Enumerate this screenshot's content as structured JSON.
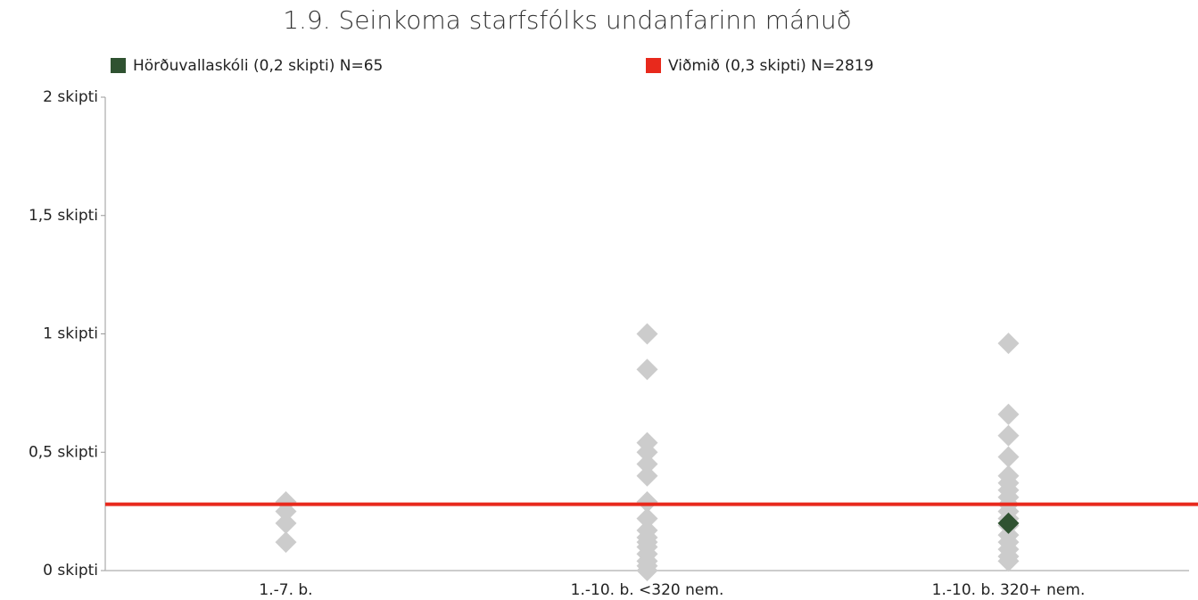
{
  "chart_data": {
    "type": "strip",
    "title": "1.9. Seinkoma starfsfólks undanfarinn mánuð",
    "categories": [
      "1.-7. b.",
      "1.-10. b. <320 nem.",
      "1.-10. b. 320+ nem."
    ],
    "groups": [
      [
        0.29,
        0.25,
        0.2,
        0.12
      ],
      [
        1.0,
        0.85,
        0.54,
        0.5,
        0.45,
        0.4,
        0.29,
        0.22,
        0.17,
        0.14,
        0.12,
        0.1,
        0.07,
        0.04,
        0.02,
        0
      ],
      [
        0.96,
        0.66,
        0.57,
        0.48,
        0.4,
        0.37,
        0.34,
        0.31,
        0.28,
        0.25,
        0.22,
        0.19,
        0.15,
        0.12,
        0.09,
        0.06,
        0.04
      ]
    ],
    "groups_color": "#cccccc",
    "series": [
      {
        "name": "Hörðuvallaskóli (0,2 skipti) N=65",
        "color": "#2f5231",
        "values": [
          null,
          null,
          0.2
        ]
      }
    ],
    "reference": {
      "name": "Viðmið (0,3 skipti) N=2819",
      "color": "#e8291c",
      "value": 0.28
    },
    "ylim": [
      0,
      2
    ],
    "yticks": [
      {
        "value": 0,
        "label": "0 skipti"
      },
      {
        "value": 0.5,
        "label": "0,5 skipti"
      },
      {
        "value": 1,
        "label": "1 skipti"
      },
      {
        "value": 1.5,
        "label": "1,5 skipti"
      },
      {
        "value": 2,
        "label": "2 skipti"
      }
    ]
  }
}
